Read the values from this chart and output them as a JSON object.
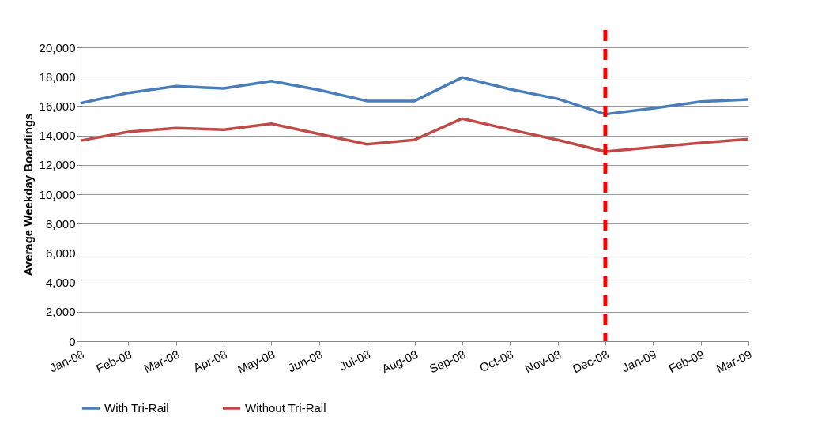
{
  "chart_data": {
    "type": "line",
    "ylabel": "Average Weekday Boardings",
    "categories": [
      "Jan-08",
      "Feb-08",
      "Mar-08",
      "Apr-08",
      "May-08",
      "Jun-08",
      "Jul-08",
      "Aug-08",
      "Sep-08",
      "Oct-08",
      "Nov-08",
      "Dec-08",
      "Jan-09",
      "Feb-09",
      "Mar-09"
    ],
    "series": [
      {
        "name": "With Tri-Rail",
        "color": "#4a7ebb",
        "values": [
          16200,
          16900,
          17350,
          17200,
          17700,
          17100,
          16350,
          16350,
          17950,
          17150,
          16500,
          15450,
          15850,
          16300,
          16450
        ]
      },
      {
        "name": "Without Tri-Rail",
        "color": "#be4b48",
        "values": [
          13650,
          14250,
          14500,
          14400,
          14800,
          14100,
          13400,
          13700,
          15150,
          14400,
          13700,
          12900,
          13200,
          13500,
          13750
        ]
      }
    ],
    "ylim": [
      0,
      20000
    ],
    "yticks": [
      0,
      {
        "value": 2000,
        "label": "2,000"
      },
      {
        "value": 4000,
        "label": "4,000"
      },
      {
        "value": 6000,
        "label": "6,000"
      },
      {
        "value": 8000,
        "label": "8,000"
      },
      {
        "value": 10000,
        "label": "10,000"
      },
      {
        "value": 12000,
        "label": "12,000"
      },
      {
        "value": 14000,
        "label": "14,000"
      },
      {
        "value": 16000,
        "label": "16,000"
      },
      {
        "value": 18000,
        "label": "18,000"
      },
      {
        "value": 20000,
        "label": "20,000"
      }
    ],
    "grid": "y",
    "legend": "bottom",
    "marker": "none",
    "line_style": "solid",
    "ref_lines": [
      {
        "axis": "x",
        "value": "Dec-08",
        "color": "#ff0000",
        "line_style": "dashed"
      }
    ]
  }
}
